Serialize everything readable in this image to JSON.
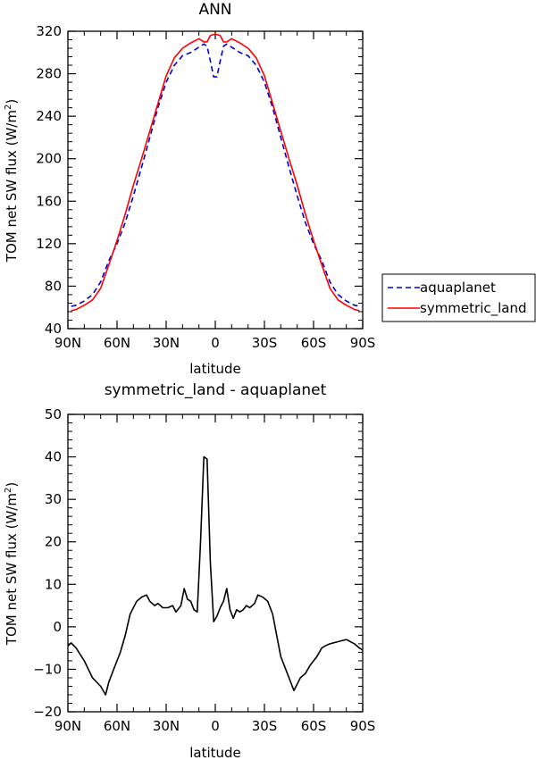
{
  "chart_data": [
    {
      "type": "line",
      "title": "ANN",
      "xlabel": "latitude",
      "ylabel_pre": "TOM net SW flux (W/m",
      "ylabel_sup": "2",
      "ylabel_post": ")",
      "ylim": [
        40,
        320
      ],
      "yticks": [
        40,
        80,
        120,
        160,
        200,
        240,
        280,
        320
      ],
      "xlim": [
        -90,
        90
      ],
      "xtick_values": [
        -90,
        -60,
        -30,
        0,
        30,
        60,
        90
      ],
      "xtick_labels": [
        "90N",
        "60N",
        "30N",
        "0",
        "30S",
        "60S",
        "90S"
      ],
      "legend_position": "right",
      "series": [
        {
          "name": "aquaplanet",
          "color": "#0000cc",
          "dash": true,
          "x": [
            -88,
            -85,
            -80,
            -75,
            -70,
            -65,
            -60,
            -55,
            -50,
            -45,
            -40,
            -35,
            -30,
            -25,
            -20,
            -15,
            -10,
            -7,
            -5,
            -3,
            -1,
            1,
            3,
            5,
            7,
            10,
            15,
            20,
            25,
            30,
            35,
            40,
            45,
            50,
            55,
            60,
            65,
            70,
            75,
            80,
            85,
            88
          ],
          "y": [
            61,
            62,
            66,
            72,
            84,
            104,
            120,
            140,
            165,
            192,
            220,
            248,
            272,
            288,
            297,
            300,
            305,
            308,
            306,
            292,
            277,
            277,
            292,
            306,
            308,
            305,
            300,
            297,
            288,
            272,
            248,
            220,
            192,
            165,
            140,
            120,
            104,
            84,
            72,
            66,
            62,
            61
          ]
        },
        {
          "name": "symmetric_land",
          "color": "#ff0000",
          "dash": false,
          "x": [
            -88,
            -85,
            -80,
            -75,
            -70,
            -65,
            -60,
            -55,
            -50,
            -45,
            -40,
            -35,
            -30,
            -25,
            -20,
            -15,
            -10,
            -7,
            -5,
            -3,
            -1,
            1,
            3,
            5,
            7,
            10,
            15,
            20,
            25,
            30,
            35,
            40,
            45,
            50,
            55,
            60,
            65,
            70,
            75,
            80,
            85,
            88
          ],
          "y": [
            57,
            58,
            62,
            67,
            78,
            100,
            123,
            148,
            175,
            200,
            226,
            252,
            278,
            295,
            304,
            309,
            313,
            310,
            310,
            316,
            317,
            317,
            316,
            310,
            310,
            313,
            309,
            304,
            295,
            278,
            252,
            226,
            200,
            175,
            148,
            123,
            100,
            78,
            67,
            62,
            58,
            57
          ]
        }
      ]
    },
    {
      "type": "line",
      "title": "symmetric_land - aquaplanet",
      "xlabel": "latitude",
      "ylabel_pre": "TOM net SW flux (W/m",
      "ylabel_sup": "2",
      "ylabel_post": ")",
      "ylim": [
        -20,
        50
      ],
      "yticks": [
        -20,
        -10,
        0,
        10,
        20,
        30,
        40,
        50
      ],
      "xlim": [
        -90,
        90
      ],
      "xtick_values": [
        -90,
        -60,
        -30,
        0,
        30,
        60,
        90
      ],
      "xtick_labels": [
        "90N",
        "60N",
        "30N",
        "0",
        "30S",
        "60S",
        "90S"
      ],
      "series": [
        {
          "color": "#000000",
          "dash": false,
          "x": [
            -90,
            -88,
            -85,
            -80,
            -75,
            -70,
            -67,
            -65,
            -62,
            -58,
            -55,
            -52,
            -48,
            -45,
            -42,
            -40,
            -37,
            -35,
            -32,
            -29,
            -26,
            -24,
            -21,
            -19,
            -17,
            -15,
            -13,
            -11,
            -9,
            -7,
            -5,
            -3,
            -1,
            1,
            3,
            5,
            7,
            9,
            11,
            13,
            15,
            17,
            19,
            21,
            24,
            26,
            29,
            32,
            35,
            37,
            40,
            42,
            45,
            48,
            52,
            55,
            58,
            62,
            65,
            67,
            70,
            75,
            80,
            85,
            88,
            90
          ],
          "y": [
            -4.5,
            -3.8,
            -5,
            -8,
            -12,
            -14,
            -16,
            -13,
            -10,
            -6,
            -2,
            3,
            6,
            7,
            7.5,
            6,
            5,
            5.5,
            4.5,
            4.5,
            5,
            3.5,
            5,
            9,
            6.5,
            6,
            4,
            3.5,
            20,
            40,
            39.5,
            15,
            1.2,
            2.5,
            4.5,
            6,
            9,
            4,
            2,
            4,
            3.5,
            4,
            5,
            4.5,
            5.5,
            7.5,
            7,
            6,
            3,
            -1,
            -7,
            -9,
            -12,
            -15,
            -12,
            -11,
            -9,
            -7,
            -5,
            -4.5,
            -4,
            -3.5,
            -3,
            -4,
            -5,
            -5.5
          ]
        }
      ]
    }
  ]
}
